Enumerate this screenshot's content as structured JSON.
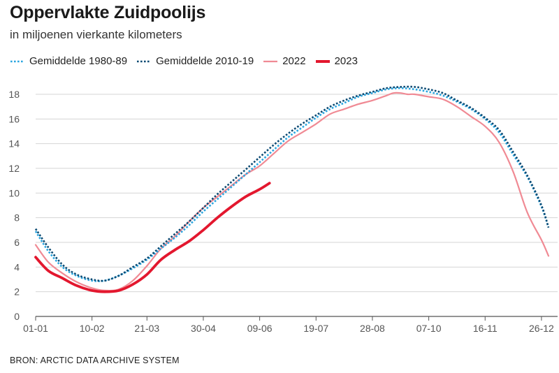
{
  "header": {
    "title": "Oppervlakte Zuidpoolijs",
    "subtitle": "in miljoenen vierkante kilometers"
  },
  "legend": [
    {
      "label": "Gemiddelde 1980-89",
      "color": "#2aa6e0",
      "style": "dotted"
    },
    {
      "label": "Gemiddelde 2010-19",
      "color": "#0b4a73",
      "style": "dotted"
    },
    {
      "label": "2022",
      "color": "#f08a94",
      "style": "solid"
    },
    {
      "label": "2023",
      "color": "#e3172e",
      "style": "solid-thick"
    }
  ],
  "footer": {
    "source": "BRON: ARCTIC DATA ARCHIVE SYSTEM"
  },
  "chart_data": {
    "type": "line",
    "title": "Oppervlakte Zuidpoolijs",
    "subtitle": "in miljoenen vierkante kilometers",
    "xlabel": "",
    "ylabel": "",
    "x_unit": "day of year",
    "xlim": [
      1,
      365
    ],
    "ylim": [
      0,
      18
    ],
    "yticks": [
      0,
      2,
      4,
      6,
      8,
      10,
      12,
      14,
      16,
      18
    ],
    "xticks": [
      {
        "day": 1,
        "label": "01-01"
      },
      {
        "day": 41,
        "label": "10-02"
      },
      {
        "day": 80,
        "label": "21-03"
      },
      {
        "day": 120,
        "label": "30-04"
      },
      {
        "day": 160,
        "label": "09-06"
      },
      {
        "day": 200,
        "label": "19-07"
      },
      {
        "day": 240,
        "label": "28-08"
      },
      {
        "day": 280,
        "label": "07-10"
      },
      {
        "day": 320,
        "label": "16-11"
      },
      {
        "day": 360,
        "label": "26-12"
      }
    ],
    "grid": "horizontal",
    "legend_position": "top-left",
    "series": [
      {
        "name": "Gemiddelde 1980-89",
        "color": "#2aa6e0",
        "style": "dotted",
        "x": [
          1,
          10,
          20,
          30,
          41,
          50,
          60,
          70,
          80,
          90,
          100,
          110,
          120,
          130,
          140,
          150,
          160,
          170,
          180,
          190,
          200,
          210,
          220,
          230,
          240,
          250,
          260,
          270,
          280,
          290,
          300,
          310,
          320,
          330,
          340,
          350,
          360,
          365
        ],
        "y": [
          6.9,
          5.3,
          4.0,
          3.3,
          2.9,
          2.9,
          3.3,
          3.9,
          4.6,
          5.5,
          6.4,
          7.4,
          8.5,
          9.5,
          10.5,
          11.5,
          12.5,
          13.5,
          14.5,
          15.3,
          16.1,
          16.8,
          17.3,
          17.8,
          18.1,
          18.4,
          18.5,
          18.4,
          18.2,
          17.9,
          17.4,
          16.8,
          16.0,
          14.9,
          13.1,
          11.3,
          8.9,
          7.2
        ]
      },
      {
        "name": "Gemiddelde 2010-19",
        "color": "#0b4a73",
        "style": "dotted",
        "x": [
          1,
          10,
          20,
          30,
          41,
          50,
          60,
          70,
          80,
          90,
          100,
          110,
          120,
          130,
          140,
          150,
          160,
          170,
          180,
          190,
          200,
          210,
          220,
          230,
          240,
          250,
          260,
          270,
          280,
          290,
          300,
          310,
          320,
          330,
          340,
          350,
          360,
          365
        ],
        "y": [
          7.1,
          5.6,
          4.2,
          3.4,
          3.0,
          2.9,
          3.3,
          4.0,
          4.7,
          5.7,
          6.7,
          7.7,
          8.8,
          9.9,
          10.9,
          11.9,
          12.9,
          13.9,
          14.8,
          15.6,
          16.3,
          17.0,
          17.5,
          17.9,
          18.2,
          18.5,
          18.6,
          18.6,
          18.4,
          18.1,
          17.5,
          16.9,
          16.1,
          15.1,
          13.3,
          11.4,
          9.0,
          7.2
        ]
      },
      {
        "name": "2022",
        "color": "#f08a94",
        "style": "solid",
        "x": [
          1,
          10,
          20,
          30,
          41,
          50,
          60,
          70,
          80,
          90,
          100,
          110,
          120,
          130,
          140,
          150,
          160,
          170,
          180,
          190,
          200,
          210,
          220,
          230,
          240,
          250,
          255,
          260,
          265,
          270,
          280,
          290,
          300,
          310,
          320,
          330,
          340,
          350,
          360,
          365
        ],
        "y": [
          5.8,
          4.4,
          3.5,
          2.8,
          2.3,
          2.1,
          2.2,
          2.9,
          4.1,
          5.5,
          6.5,
          7.7,
          8.8,
          9.7,
          10.6,
          11.5,
          12.2,
          13.2,
          14.2,
          14.9,
          15.6,
          16.4,
          16.8,
          17.2,
          17.5,
          17.9,
          18.1,
          18.1,
          18.0,
          18.0,
          17.8,
          17.6,
          17.0,
          16.2,
          15.4,
          14.1,
          11.7,
          8.4,
          6.2,
          4.9
        ]
      },
      {
        "name": "2023",
        "color": "#e3172e",
        "style": "solid-thick",
        "x": [
          1,
          10,
          20,
          30,
          41,
          50,
          60,
          70,
          80,
          90,
          100,
          110,
          120,
          130,
          140,
          150,
          160,
          167
        ],
        "y": [
          4.8,
          3.7,
          3.1,
          2.5,
          2.1,
          2.0,
          2.1,
          2.6,
          3.4,
          4.6,
          5.4,
          6.1,
          7.0,
          8.0,
          8.9,
          9.7,
          10.3,
          10.8
        ]
      }
    ]
  }
}
